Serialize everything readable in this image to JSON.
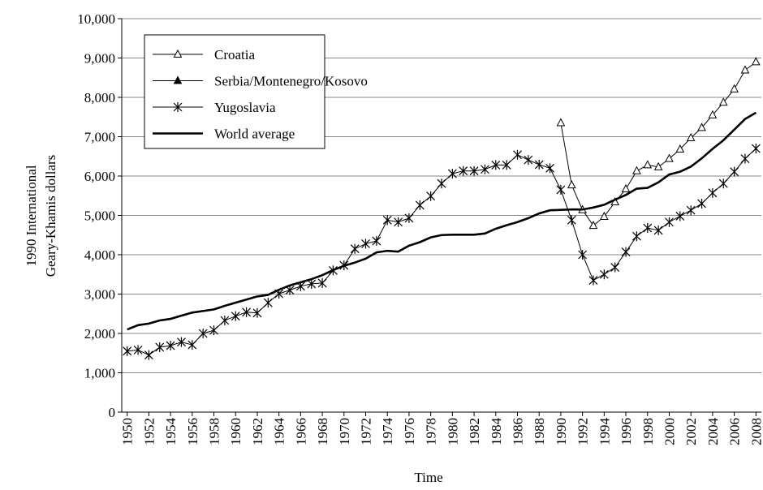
{
  "chart_data": {
    "type": "line",
    "x": [
      1950,
      1951,
      1952,
      1953,
      1954,
      1955,
      1956,
      1957,
      1958,
      1959,
      1960,
      1961,
      1962,
      1963,
      1964,
      1965,
      1966,
      1967,
      1968,
      1969,
      1970,
      1971,
      1972,
      1973,
      1974,
      1975,
      1976,
      1977,
      1978,
      1979,
      1980,
      1981,
      1982,
      1983,
      1984,
      1985,
      1986,
      1987,
      1988,
      1989,
      1990,
      1991,
      1992,
      1993,
      1994,
      1995,
      1996,
      1997,
      1998,
      1999,
      2000,
      2001,
      2002,
      2003,
      2004,
      2005,
      2006,
      2007,
      2008
    ],
    "xlim": [
      1949.5,
      2008.5
    ],
    "xticks": [
      1950,
      1952,
      1954,
      1956,
      1958,
      1960,
      1962,
      1964,
      1966,
      1968,
      1970,
      1972,
      1974,
      1976,
      1978,
      1980,
      1982,
      1984,
      1986,
      1988,
      1990,
      1992,
      1994,
      1996,
      1998,
      2000,
      2002,
      2004,
      2006,
      2008
    ],
    "ylim": [
      0,
      10000
    ],
    "yticks": [
      0,
      {
        "value": 1000,
        "label": "1,000"
      },
      {
        "value": 2000,
        "label": "2,000"
      },
      {
        "value": 3000,
        "label": "3,000"
      },
      {
        "value": 4000,
        "label": "4,000"
      },
      {
        "value": 5000,
        "label": "5,000"
      },
      {
        "value": 6000,
        "label": "6,000"
      },
      {
        "value": 7000,
        "label": "7,000"
      },
      {
        "value": 8000,
        "label": "8,000"
      },
      {
        "value": 9000,
        "label": "9,000"
      },
      {
        "value": 10000,
        "label": "10,000"
      }
    ],
    "grid": true,
    "x_label": "Time",
    "y_label": [
      "1990 International",
      "Geary-Khamis dollars"
    ],
    "legend": "top-left",
    "series": [
      {
        "name": "Croatia",
        "color": "#000000",
        "marker": "open-triangle",
        "width": 1,
        "values": [
          null,
          null,
          null,
          null,
          null,
          null,
          null,
          null,
          null,
          null,
          null,
          null,
          null,
          null,
          null,
          null,
          null,
          null,
          null,
          null,
          null,
          null,
          null,
          null,
          null,
          null,
          null,
          null,
          null,
          null,
          null,
          null,
          null,
          null,
          null,
          null,
          null,
          null,
          null,
          null,
          7350,
          5770,
          5140,
          4740,
          4970,
          5340,
          5670,
          6130,
          6280,
          6230,
          6440,
          6680,
          6970,
          7230,
          7550,
          7870,
          8210,
          8690,
          8900
        ]
      },
      {
        "name": "Serbia/Montenegro/Kosovo",
        "color": "#000000",
        "marker": "filled-triangle",
        "width": 1,
        "values": [
          null,
          null,
          null,
          null,
          null,
          null,
          null,
          null,
          null,
          null,
          null,
          null,
          null,
          null,
          null,
          null,
          null,
          null,
          null,
          null,
          null,
          null,
          null,
          null,
          null,
          null,
          null,
          null,
          null,
          null,
          null,
          null,
          null,
          null,
          null,
          null,
          null,
          null,
          null,
          null,
          null,
          null,
          null,
          null,
          null,
          null,
          null,
          null,
          null,
          null,
          null,
          null,
          null,
          null,
          null,
          null,
          null,
          null,
          null
        ]
      },
      {
        "name": "Yugoslavia",
        "color": "#000000",
        "marker": "asterisk",
        "width": 1,
        "values": [
          1550,
          1580,
          1450,
          1650,
          1690,
          1780,
          1710,
          2000,
          2080,
          2330,
          2440,
          2540,
          2520,
          2780,
          3010,
          3100,
          3200,
          3260,
          3280,
          3600,
          3730,
          4150,
          4280,
          4350,
          4880,
          4830,
          4930,
          5260,
          5490,
          5810,
          6060,
          6130,
          6130,
          6170,
          6280,
          6280,
          6540,
          6410,
          6290,
          6200,
          5650,
          4880,
          4000,
          3350,
          3500,
          3680,
          4070,
          4470,
          4680,
          4620,
          4830,
          4980,
          5130,
          5300,
          5570,
          5810,
          6110,
          6440,
          6700
        ]
      },
      {
        "name": "World average",
        "color": "#000000",
        "marker": "none",
        "width": 2.6,
        "values": [
          2100,
          2210,
          2250,
          2330,
          2370,
          2450,
          2530,
          2570,
          2610,
          2700,
          2780,
          2860,
          2940,
          2980,
          3110,
          3220,
          3300,
          3380,
          3480,
          3610,
          3720,
          3800,
          3900,
          4060,
          4100,
          4080,
          4230,
          4320,
          4440,
          4500,
          4510,
          4510,
          4510,
          4540,
          4660,
          4750,
          4830,
          4930,
          5050,
          5130,
          5140,
          5150,
          5150,
          5200,
          5270,
          5400,
          5520,
          5680,
          5700,
          5840,
          6040,
          6110,
          6240,
          6450,
          6690,
          6910,
          7180,
          7450,
          7610
        ]
      }
    ]
  }
}
